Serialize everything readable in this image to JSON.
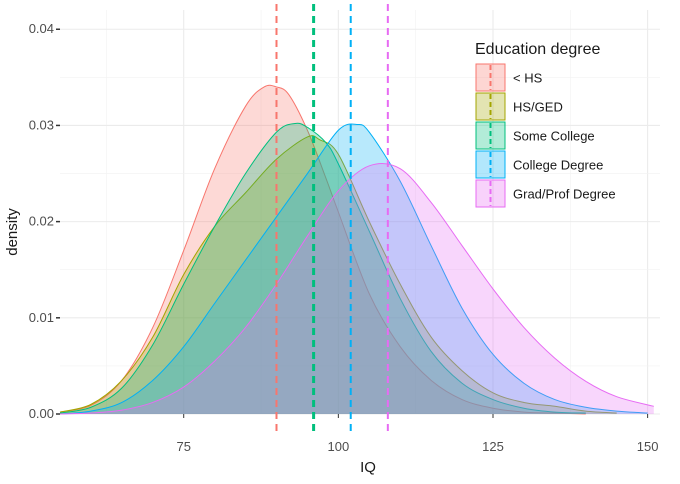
{
  "chart_data": {
    "type": "area",
    "xlabel": "IQ",
    "ylabel": "density",
    "xlim": [
      55,
      152
    ],
    "ylim": [
      0,
      0.042
    ],
    "x_ticks": [
      75,
      100,
      125,
      150
    ],
    "x_tick_labels": [
      "75",
      "100",
      "125",
      "150"
    ],
    "y_ticks": [
      0,
      0.01,
      0.02,
      0.03,
      0.04
    ],
    "y_tick_labels": [
      "0.00",
      "0.01",
      "0.02",
      "0.03",
      "0.04"
    ],
    "grid": true,
    "legend_title": "Education degree",
    "legend_position": "top-right",
    "series": [
      {
        "name": "< HS",
        "color": "#F8766D",
        "mean_line": 90,
        "x": [
          55,
          60,
          65,
          70,
          75,
          80,
          85,
          88,
          90,
          92,
          95,
          98,
          100,
          105,
          110,
          115,
          120,
          125,
          130,
          135,
          140
        ],
        "y": [
          0.0002,
          0.0009,
          0.0035,
          0.009,
          0.017,
          0.0255,
          0.032,
          0.034,
          0.034,
          0.0332,
          0.0295,
          0.0245,
          0.021,
          0.0125,
          0.007,
          0.0035,
          0.0015,
          0.0006,
          0.0002,
          0.0001,
          0
        ]
      },
      {
        "name": "HS/GED",
        "color": "#A3A500",
        "mean_line": 96,
        "x": [
          55,
          60,
          65,
          70,
          75,
          80,
          85,
          90,
          95,
          97,
          100,
          105,
          110,
          115,
          120,
          125,
          130,
          135,
          140,
          145
        ],
        "y": [
          0.0002,
          0.001,
          0.0035,
          0.008,
          0.0145,
          0.0195,
          0.023,
          0.0265,
          0.0288,
          0.0285,
          0.027,
          0.02,
          0.0135,
          0.008,
          0.0045,
          0.0022,
          0.0012,
          0.0008,
          0.0003,
          0.0001
        ]
      },
      {
        "name": "Some College",
        "color": "#00BF7D",
        "mean_line": 96,
        "x": [
          55,
          60,
          65,
          70,
          75,
          80,
          85,
          90,
          93,
          95,
          98,
          100,
          105,
          110,
          115,
          120,
          125,
          130,
          135,
          140
        ],
        "y": [
          0.0001,
          0.0007,
          0.0027,
          0.0072,
          0.0135,
          0.0195,
          0.025,
          0.0293,
          0.0302,
          0.0298,
          0.0282,
          0.026,
          0.019,
          0.012,
          0.0065,
          0.0032,
          0.0015,
          0.0006,
          0.0002,
          0.0001
        ]
      },
      {
        "name": "College Degree",
        "color": "#00B0F6",
        "mean_line": 102,
        "x": [
          55,
          60,
          65,
          70,
          75,
          80,
          85,
          90,
          95,
          100,
          103,
          105,
          110,
          115,
          120,
          125,
          130,
          135,
          140,
          145,
          150
        ],
        "y": [
          0,
          0.0003,
          0.0012,
          0.0035,
          0.007,
          0.0115,
          0.016,
          0.0205,
          0.025,
          0.0295,
          0.0301,
          0.0293,
          0.0242,
          0.0175,
          0.011,
          0.0062,
          0.0032,
          0.0015,
          0.0007,
          0.0003,
          0.0001
        ]
      },
      {
        "name": "Grad/Prof Degree",
        "color": "#E76BF3",
        "mean_line": 108,
        "x": [
          55,
          60,
          65,
          70,
          75,
          80,
          85,
          90,
          95,
          100,
          105,
          110,
          115,
          120,
          125,
          130,
          135,
          140,
          145,
          151
        ],
        "y": [
          0,
          0.0001,
          0.0004,
          0.0012,
          0.0028,
          0.0055,
          0.009,
          0.0135,
          0.0185,
          0.0232,
          0.0258,
          0.0255,
          0.022,
          0.0175,
          0.013,
          0.009,
          0.0058,
          0.0034,
          0.0018,
          0.0008
        ]
      }
    ]
  }
}
